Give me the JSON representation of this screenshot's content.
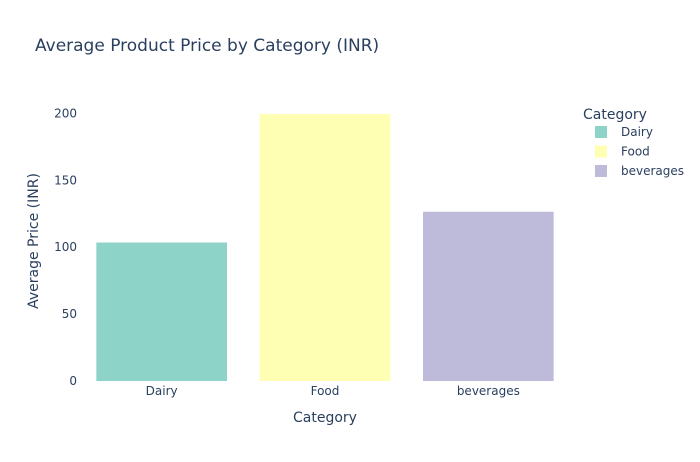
{
  "chart_data": {
    "type": "bar",
    "title": "Average Product Price by Category (INR)",
    "xlabel": "Category",
    "ylabel": "Average Price (INR)",
    "categories": [
      "Dairy",
      "Food",
      "beverages"
    ],
    "values": [
      103.5,
      199.5,
      126.5
    ],
    "colors": [
      "#8dd3c7",
      "#ffffb3",
      "#bebada"
    ],
    "ylim": [
      0,
      210
    ],
    "yticks": [
      0,
      50,
      100,
      150,
      200
    ],
    "grid": false,
    "legend": {
      "title": "Category",
      "placement": "top-right",
      "entries": [
        "Dairy",
        "Food",
        "beverages"
      ]
    }
  }
}
